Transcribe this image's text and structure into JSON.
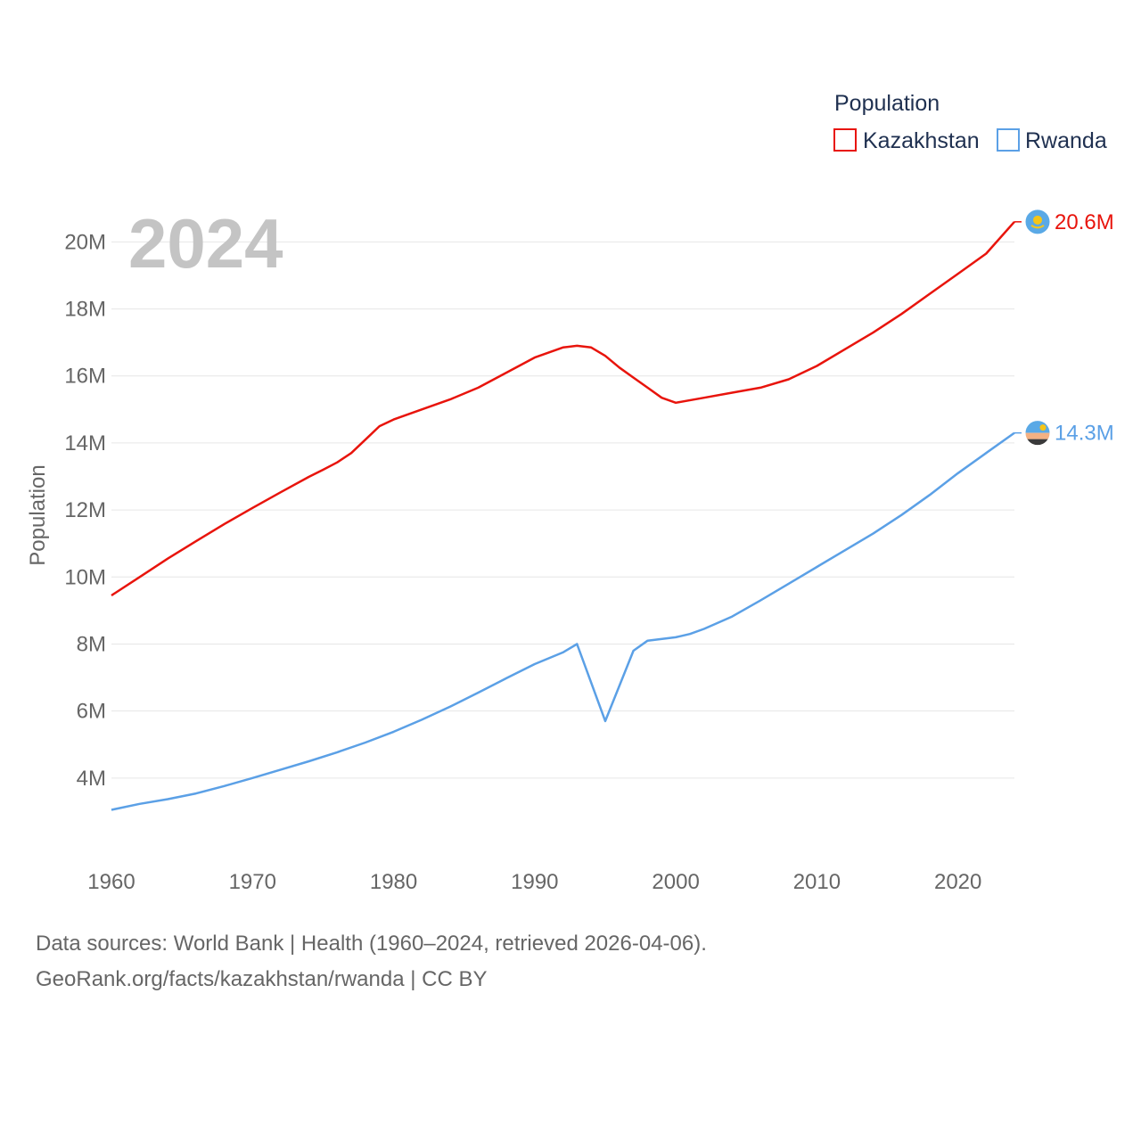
{
  "chart_data": {
    "type": "line",
    "year_overlay": "2024",
    "ylabel": "Population",
    "xlabel": "",
    "xlim": [
      1960,
      2024
    ],
    "ylim": [
      2000000,
      21500000
    ],
    "x_ticks": [
      1960,
      1970,
      1980,
      1990,
      2000,
      2010,
      2020
    ],
    "y_ticks": [
      {
        "value": 4000000,
        "label": "4M"
      },
      {
        "value": 6000000,
        "label": "6M"
      },
      {
        "value": 8000000,
        "label": "8M"
      },
      {
        "value": 10000000,
        "label": "10M"
      },
      {
        "value": 12000000,
        "label": "12M"
      },
      {
        "value": 14000000,
        "label": "14M"
      },
      {
        "value": 16000000,
        "label": "16M"
      },
      {
        "value": 18000000,
        "label": "18M"
      },
      {
        "value": 20000000,
        "label": "20M"
      }
    ],
    "legend": {
      "title": "Population",
      "placement": "top-right"
    },
    "series": [
      {
        "name": "Kazakhstan",
        "color": "#e8140c",
        "end_label": "20.6M",
        "flag_icon": "kazakhstan-flag-icon",
        "points": [
          [
            1960,
            9450000
          ],
          [
            1962,
            10000000
          ],
          [
            1964,
            10550000
          ],
          [
            1966,
            11070000
          ],
          [
            1968,
            11580000
          ],
          [
            1970,
            12060000
          ],
          [
            1972,
            12530000
          ],
          [
            1974,
            12990000
          ],
          [
            1975,
            13200000
          ],
          [
            1976,
            13420000
          ],
          [
            1977,
            13700000
          ],
          [
            1978,
            14100000
          ],
          [
            1979,
            14500000
          ],
          [
            1980,
            14700000
          ],
          [
            1982,
            15000000
          ],
          [
            1984,
            15300000
          ],
          [
            1986,
            15650000
          ],
          [
            1988,
            16100000
          ],
          [
            1990,
            16550000
          ],
          [
            1992,
            16850000
          ],
          [
            1993,
            16900000
          ],
          [
            1994,
            16850000
          ],
          [
            1995,
            16600000
          ],
          [
            1996,
            16250000
          ],
          [
            1997,
            15950000
          ],
          [
            1998,
            15650000
          ],
          [
            1999,
            15350000
          ],
          [
            2000,
            15200000
          ],
          [
            2002,
            15350000
          ],
          [
            2004,
            15500000
          ],
          [
            2006,
            15650000
          ],
          [
            2008,
            15900000
          ],
          [
            2010,
            16300000
          ],
          [
            2012,
            16800000
          ],
          [
            2014,
            17300000
          ],
          [
            2016,
            17850000
          ],
          [
            2018,
            18450000
          ],
          [
            2020,
            19050000
          ],
          [
            2022,
            19650000
          ],
          [
            2024,
            20600000
          ]
        ]
      },
      {
        "name": "Rwanda",
        "color": "#5ba0e6",
        "end_label": "14.3M",
        "flag_icon": "rwanda-flag-icon",
        "points": [
          [
            1960,
            3050000
          ],
          [
            1962,
            3230000
          ],
          [
            1964,
            3370000
          ],
          [
            1966,
            3540000
          ],
          [
            1968,
            3760000
          ],
          [
            1970,
            4000000
          ],
          [
            1972,
            4250000
          ],
          [
            1974,
            4500000
          ],
          [
            1976,
            4770000
          ],
          [
            1978,
            5060000
          ],
          [
            1980,
            5380000
          ],
          [
            1982,
            5740000
          ],
          [
            1984,
            6130000
          ],
          [
            1986,
            6550000
          ],
          [
            1988,
            6980000
          ],
          [
            1990,
            7400000
          ],
          [
            1992,
            7750000
          ],
          [
            1993,
            8000000
          ],
          [
            1995,
            5700000
          ],
          [
            1997,
            7800000
          ],
          [
            1998,
            8100000
          ],
          [
            2000,
            8200000
          ],
          [
            2001,
            8300000
          ],
          [
            2002,
            8450000
          ],
          [
            2004,
            8820000
          ],
          [
            2006,
            9300000
          ],
          [
            2008,
            9800000
          ],
          [
            2010,
            10300000
          ],
          [
            2012,
            10800000
          ],
          [
            2014,
            11300000
          ],
          [
            2016,
            11850000
          ],
          [
            2018,
            12450000
          ],
          [
            2020,
            13100000
          ],
          [
            2022,
            13700000
          ],
          [
            2024,
            14300000
          ]
        ]
      }
    ]
  },
  "footer": {
    "line1": "Data sources: World Bank | Health (1960–2024, retrieved 2026-04-06).",
    "line2": "GeoRank.org/facts/kazakhstan/rwanda | CC BY"
  }
}
